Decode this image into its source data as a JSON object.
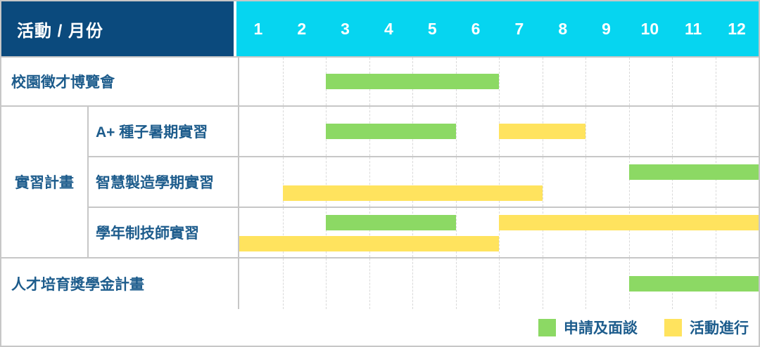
{
  "header": {
    "corner_label": "活動 / 月份",
    "months": [
      "1",
      "2",
      "3",
      "4",
      "5",
      "6",
      "7",
      "8",
      "9",
      "10",
      "11",
      "12"
    ]
  },
  "colors": {
    "header_bg": "#0b4a7d",
    "months_bg": "#06d5f0",
    "header_text": "#ffffff",
    "label_text": "#1d5c8c",
    "green": "#8cd964",
    "yellow": "#ffe35e",
    "grid_solid": "#c7c7c7",
    "grid_dashed": "#d9d9d9"
  },
  "legend": [
    {
      "label": "申請及面談",
      "color_key": "green"
    },
    {
      "label": "活動進行",
      "color_key": "yellow"
    }
  ],
  "chart_data": {
    "type": "gantt",
    "title": "活動 / 月份",
    "x_unit": "month",
    "x_ticks": [
      1,
      2,
      3,
      4,
      5,
      6,
      7,
      8,
      9,
      10,
      11,
      12
    ],
    "legend": [
      {
        "phase": "申請及面談",
        "color_key": "green"
      },
      {
        "phase": "活動進行",
        "color_key": "yellow"
      }
    ],
    "rows": [
      {
        "group": null,
        "label": "校園徵才博覽會",
        "tracks": 1,
        "bars": [
          {
            "phase": "申請及面談",
            "color": "green",
            "start_month": 3,
            "end_month": 6,
            "track": 0
          }
        ]
      },
      {
        "group": "實習計畫",
        "label": "A+ 種子暑期實習",
        "tracks": 1,
        "bars": [
          {
            "phase": "申請及面談",
            "color": "green",
            "start_month": 3,
            "end_month": 5,
            "track": 0
          },
          {
            "phase": "活動進行",
            "color": "yellow",
            "start_month": 7,
            "end_month": 8,
            "track": 0
          }
        ]
      },
      {
        "group": "實習計畫",
        "label": "智慧製造學期實習",
        "tracks": 2,
        "bars": [
          {
            "phase": "申請及面談",
            "color": "green",
            "start_month": 10,
            "end_month": 12,
            "track": 0
          },
          {
            "phase": "活動進行",
            "color": "yellow",
            "start_month": 2,
            "end_month": 7,
            "track": 1
          }
        ]
      },
      {
        "group": "實習計畫",
        "label": "學年制技師實習",
        "tracks": 2,
        "bars": [
          {
            "phase": "申請及面談",
            "color": "green",
            "start_month": 3,
            "end_month": 5,
            "track": 0
          },
          {
            "phase": "活動進行",
            "color": "yellow",
            "start_month": 7,
            "end_month": 12,
            "track": 0
          },
          {
            "phase": "活動進行",
            "color": "yellow",
            "start_month": 1,
            "end_month": 6,
            "track": 1
          }
        ]
      },
      {
        "group": null,
        "label": "人才培育獎學金計畫",
        "tracks": 1,
        "bars": [
          {
            "phase": "申請及面談",
            "color": "green",
            "start_month": 10,
            "end_month": 12,
            "track": 0
          }
        ]
      }
    ]
  }
}
